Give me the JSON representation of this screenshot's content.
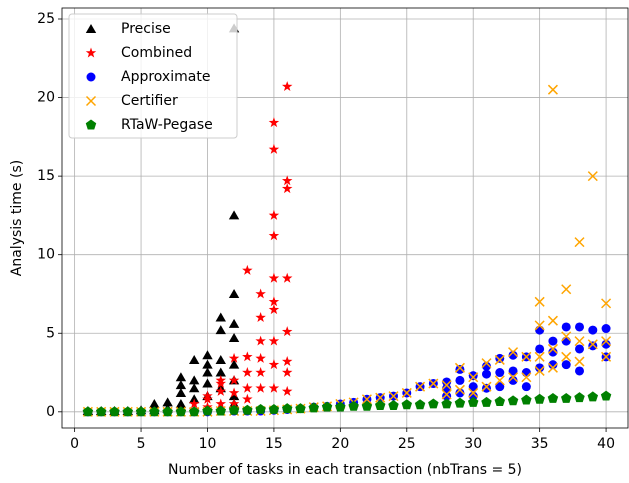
{
  "chart_data": {
    "type": "scatter",
    "x_label": "Number of tasks in each transaction (nbTrans = 5)",
    "y_label": "Analysis time (s)",
    "xlim": [
      -0.95,
      41.65
    ],
    "ylim": [
      -1.03,
      25.7
    ],
    "xticks": [
      0,
      5,
      10,
      15,
      20,
      25,
      30,
      35,
      40
    ],
    "yticks": [
      0,
      5,
      10,
      15,
      20,
      25
    ],
    "grid": true,
    "legend": "upper left",
    "series": [
      {
        "name": "Precise",
        "color": "#000000",
        "marker": "triangle",
        "x": [
          1,
          2,
          3,
          4,
          5,
          6,
          6,
          7,
          7,
          8,
          8,
          8,
          8,
          9,
          9,
          9,
          9,
          10,
          10,
          10,
          10,
          10,
          11,
          11,
          11,
          11,
          11,
          12,
          12,
          12,
          12,
          12,
          12,
          12,
          12,
          12
        ],
        "y": [
          0.05,
          0.05,
          0.05,
          0.05,
          0.1,
          0.1,
          0.5,
          0.2,
          0.6,
          0.5,
          1.2,
          1.7,
          2.2,
          0.8,
          1.5,
          2.0,
          3.3,
          1.0,
          1.8,
          2.5,
          3.0,
          3.6,
          1.5,
          2.5,
          3.3,
          5.2,
          6.0,
          0.5,
          1.0,
          2.0,
          3.0,
          4.7,
          5.6,
          7.5,
          12.5,
          24.4
        ]
      },
      {
        "name": "Combined",
        "color": "#ff0000",
        "marker": "star",
        "x": [
          1,
          2,
          3,
          4,
          5,
          6,
          7,
          8,
          9,
          9,
          10,
          10,
          10,
          11,
          11,
          11,
          11,
          12,
          12,
          12,
          12,
          13,
          13,
          13,
          13,
          13,
          14,
          14,
          14,
          14,
          14,
          14,
          15,
          15,
          15,
          15,
          15,
          15,
          15,
          15,
          15,
          15,
          16,
          16,
          16,
          16,
          16,
          16,
          16,
          16
        ],
        "y": [
          0,
          0,
          0,
          0,
          0,
          0,
          0,
          0.05,
          0.1,
          0.5,
          0.3,
          0.8,
          1.0,
          0.5,
          1.3,
          1.8,
          2.0,
          0.5,
          1.2,
          2.0,
          3.4,
          0.8,
          1.5,
          2.5,
          3.5,
          9.0,
          1.5,
          2.5,
          3.4,
          4.5,
          6.0,
          7.5,
          1.5,
          3.0,
          4.5,
          6.5,
          7.0,
          8.5,
          11.2,
          12.5,
          16.7,
          18.4,
          1.3,
          2.5,
          3.2,
          5.1,
          8.5,
          14.2,
          14.7,
          20.7
        ]
      },
      {
        "name": "Approximate",
        "color": "#0000ff",
        "marker": "circle",
        "x": [
          1,
          2,
          3,
          4,
          5,
          6,
          7,
          8,
          9,
          10,
          11,
          12,
          13,
          14,
          15,
          16,
          17,
          18,
          19,
          20,
          21,
          22,
          23,
          24,
          25,
          26,
          27,
          28,
          28,
          28,
          29,
          29,
          29,
          30,
          30,
          30,
          31,
          31,
          31,
          32,
          32,
          32,
          33,
          33,
          33,
          34,
          34,
          34,
          35,
          35,
          35,
          36,
          36,
          36,
          37,
          37,
          37,
          38,
          38,
          38,
          39,
          39,
          40,
          40,
          40
        ],
        "y": [
          0,
          0,
          0,
          0,
          0,
          0,
          0,
          0,
          0,
          0,
          0.05,
          0.05,
          0.05,
          0.05,
          0.1,
          0.15,
          0.2,
          0.3,
          0.35,
          0.5,
          0.6,
          0.8,
          0.9,
          1.0,
          1.2,
          1.6,
          1.8,
          1.0,
          1.5,
          1.9,
          1.2,
          2.0,
          2.7,
          1.0,
          1.6,
          2.3,
          1.5,
          2.4,
          2.9,
          1.6,
          2.5,
          3.4,
          2.0,
          2.6,
          3.6,
          1.6,
          2.5,
          3.5,
          2.8,
          4.0,
          5.2,
          3.0,
          3.8,
          4.5,
          3.0,
          4.5,
          5.4,
          2.6,
          4.0,
          5.4,
          4.2,
          5.2,
          3.5,
          4.3,
          5.3
        ]
      },
      {
        "name": "Certifier",
        "color": "#ffa500",
        "marker": "x",
        "x": [
          1,
          2,
          3,
          4,
          5,
          6,
          7,
          8,
          9,
          10,
          11,
          12,
          13,
          14,
          15,
          16,
          17,
          18,
          19,
          20,
          21,
          22,
          23,
          24,
          25,
          26,
          27,
          28,
          28,
          29,
          29,
          30,
          30,
          31,
          31,
          32,
          32,
          33,
          33,
          34,
          34,
          35,
          35,
          35,
          35,
          36,
          36,
          36,
          36,
          37,
          37,
          37,
          38,
          38,
          38,
          39,
          39,
          40,
          40,
          40
        ],
        "y": [
          0,
          0,
          0,
          0,
          0,
          0,
          0,
          0,
          0,
          0,
          0.05,
          0.05,
          0.05,
          0.05,
          0.1,
          0.15,
          0.2,
          0.3,
          0.35,
          0.5,
          0.6,
          0.8,
          0.9,
          1.0,
          1.2,
          1.6,
          1.8,
          1.1,
          1.7,
          1.4,
          2.8,
          1.2,
          2.2,
          1.6,
          3.1,
          2.0,
          3.3,
          2.2,
          3.8,
          2.2,
          3.5,
          2.6,
          3.5,
          5.5,
          7.0,
          2.8,
          4.0,
          5.8,
          20.5,
          3.5,
          4.8,
          7.8,
          3.2,
          4.5,
          10.8,
          4.3,
          15.0,
          3.5,
          4.5,
          6.9
        ]
      },
      {
        "name": "RTaW-Pegase",
        "color": "#008000",
        "marker": "pentagon",
        "x": [
          1,
          2,
          3,
          4,
          5,
          6,
          7,
          8,
          9,
          10,
          11,
          12,
          13,
          14,
          15,
          16,
          17,
          18,
          19,
          20,
          21,
          22,
          23,
          24,
          25,
          26,
          27,
          28,
          29,
          30,
          31,
          32,
          33,
          34,
          35,
          36,
          37,
          38,
          39,
          40
        ],
        "y": [
          0,
          0,
          0,
          0,
          0,
          0,
          0,
          0,
          0,
          0.05,
          0.05,
          0.1,
          0.1,
          0.15,
          0.15,
          0.2,
          0.2,
          0.25,
          0.3,
          0.3,
          0.35,
          0.35,
          0.4,
          0.4,
          0.45,
          0.45,
          0.5,
          0.5,
          0.55,
          0.6,
          0.6,
          0.65,
          0.7,
          0.75,
          0.8,
          0.85,
          0.85,
          0.9,
          0.95,
          1.0
        ]
      }
    ]
  }
}
